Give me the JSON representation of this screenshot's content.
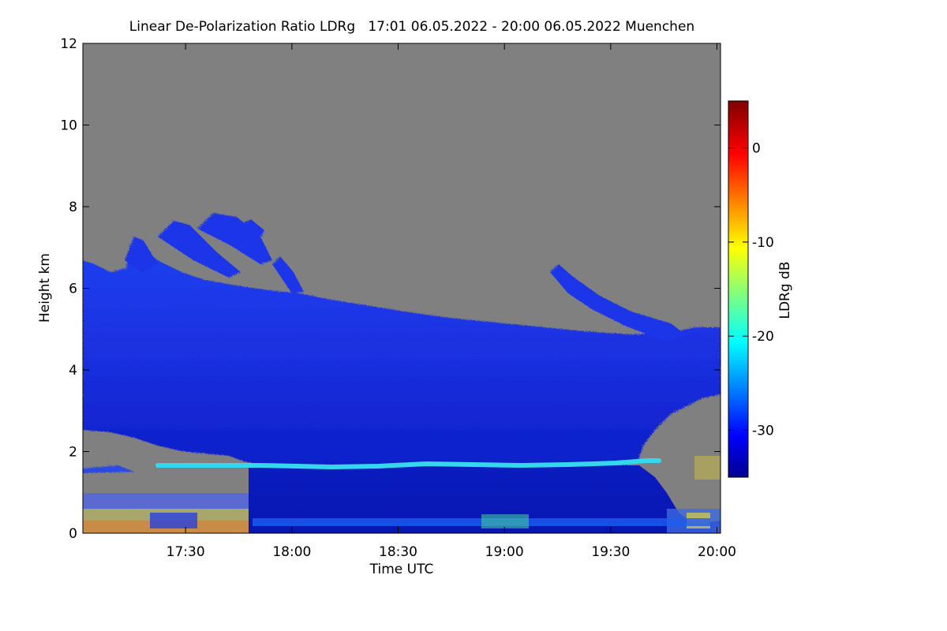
{
  "chart_data": {
    "type": "heatmap",
    "title": "Linear De-Polarization Ratio LDRg   17:01 06.05.2022 - 20:00 06.05.2022 Muenchen",
    "xlabel": "Time UTC",
    "ylabel": "Height km",
    "x_tick_labels": [
      "17:30",
      "18:00",
      "18:30",
      "19:00",
      "19:30",
      "20:00"
    ],
    "x_tick_minutes": [
      1050,
      1080,
      1110,
      1140,
      1170,
      1200
    ],
    "xlim_minutes": [
      1021,
      1201
    ],
    "y_ticks": [
      0,
      2,
      4,
      6,
      8,
      10,
      12
    ],
    "ylim": [
      0,
      12
    ],
    "colorbar": {
      "label": "LDRg dB",
      "ticks": [
        0,
        -10,
        -20,
        -30
      ],
      "range": [
        -35,
        5
      ],
      "colormap": "jet"
    },
    "colors": {
      "background_no_signal": "#808080",
      "cloud_layer": "#1a2fe0",
      "low_layer": "#0a18c0",
      "thin_layer": "#30d8f0"
    },
    "features": [
      {
        "name": "mid-level cloud",
        "time_range": [
          "17:01",
          "20:00"
        ],
        "height_km": [
          2.2,
          6.6
        ],
        "ldr_db": -30
      },
      {
        "name": "thin layer",
        "time_range": [
          "17:20",
          "19:45"
        ],
        "height_km": 1.7,
        "ldr_db": -22
      },
      {
        "name": "boundary layer",
        "time_range": [
          "17:48",
          "19:45"
        ],
        "height_km": [
          0.1,
          1.6
        ],
        "ldr_db": -33
      },
      {
        "name": "fall streaks",
        "time_range": [
          "17:20",
          "18:05"
        ],
        "height_km": [
          6.0,
          8.0
        ],
        "ldr_db": -30
      },
      {
        "name": "cloud patch",
        "time_range": [
          "19:13",
          "19:56"
        ],
        "height_km": [
          4.8,
          6.6
        ],
        "ldr_db": -30
      },
      {
        "name": "near-surface aerosol",
        "time_range": [
          "17:01",
          "17:48"
        ],
        "height_km": [
          0,
          1.0
        ],
        "ldr_db": -15
      }
    ]
  }
}
